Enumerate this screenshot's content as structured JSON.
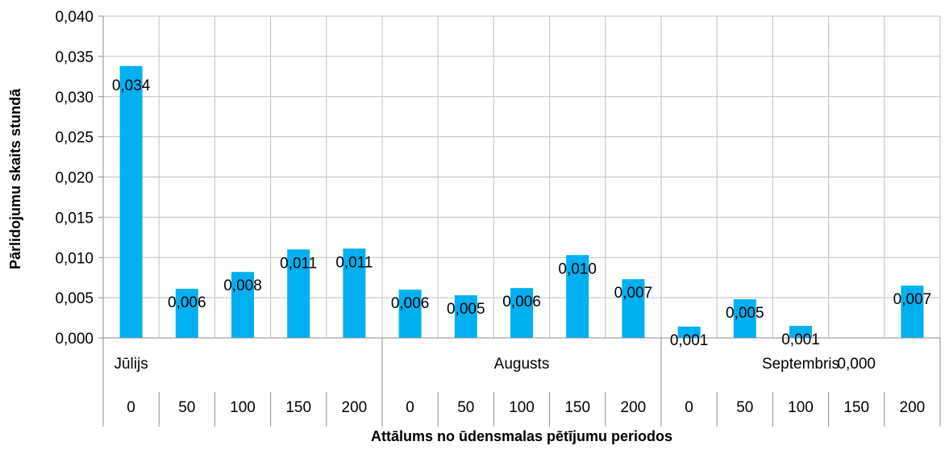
{
  "chart_data": {
    "type": "bar",
    "xlabel": "Attālums no ūdensmalas pētījumu periodos",
    "ylabel": "Pārlidojumu skaits stundā",
    "ylim": [
      0,
      0.04
    ],
    "y_ticks": [
      "0,000",
      "0,005",
      "0,010",
      "0,015",
      "0,020",
      "0,025",
      "0,030",
      "0,035",
      "0,040"
    ],
    "grid": true,
    "bar_color": "#00b0f0",
    "groups": [
      {
        "label": "Jūlijs",
        "start": 0,
        "count": 5
      },
      {
        "label": "Augusts",
        "start": 5,
        "count": 5
      },
      {
        "label": "Septembris",
        "start": 10,
        "count": 5
      }
    ],
    "categories": [
      "0",
      "50",
      "100",
      "150",
      "200",
      "0",
      "50",
      "100",
      "150",
      "200",
      "0",
      "50",
      "100",
      "150",
      "200"
    ],
    "values": [
      0.0338,
      0.0061,
      0.0082,
      0.011,
      0.0111,
      0.006,
      0.0053,
      0.0062,
      0.0103,
      0.0073,
      0.0014,
      0.0048,
      0.0015,
      0.0,
      0.0065
    ],
    "data_labels": [
      "0,034",
      "0,006",
      "0,008",
      "0,011",
      "0,011",
      "0,006",
      "0,005",
      "0,006",
      "0,010",
      "0,007",
      "0,001",
      "0,005",
      "0,001",
      "0,000",
      "0,007"
    ]
  }
}
